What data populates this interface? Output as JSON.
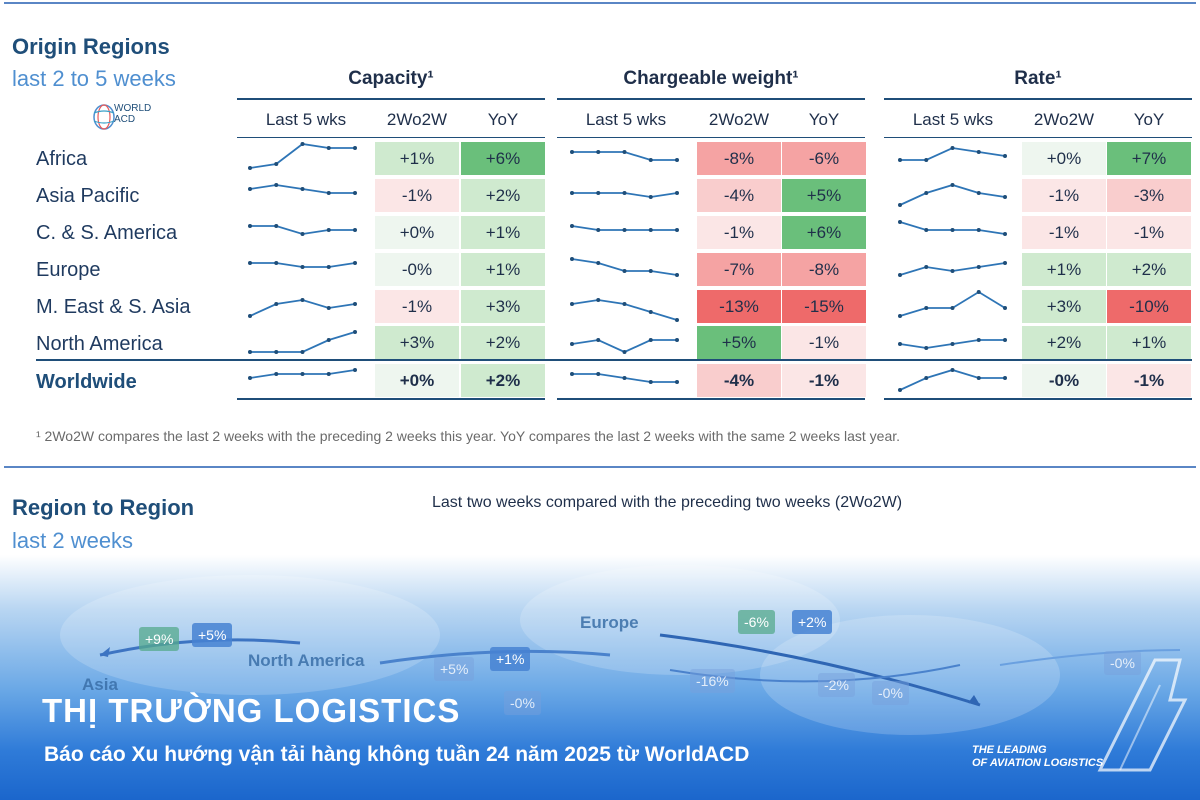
{
  "header": {
    "title": "Origin Regions",
    "subtitle": "last 2 to 5 weeks",
    "logo_line1": "WORLD",
    "logo_line2": "ACD"
  },
  "chart_data": {
    "type": "table",
    "title": "Origin Regions – last 2 to 5 weeks",
    "groups": [
      {
        "key": "capacity",
        "title": "Capacity¹"
      },
      {
        "key": "weight",
        "title": "Chargeable weight¹"
      },
      {
        "key": "rate",
        "title": "Rate¹"
      }
    ],
    "columns": [
      "Last 5 wks",
      "2Wo2W",
      "YoY"
    ],
    "rows": [
      {
        "region": "Africa",
        "capacity": {
          "spark": [
            1,
            2,
            7,
            6,
            6
          ],
          "wow": "+1%",
          "yoy": "+6%"
        },
        "weight": {
          "spark": [
            5,
            5,
            5,
            3,
            3
          ],
          "wow": "-8%",
          "yoy": "-6%"
        },
        "rate": {
          "spark": [
            3,
            3,
            6,
            5,
            4
          ],
          "wow": "+0%",
          "yoy": "+7%"
        }
      },
      {
        "region": "Asia Pacific",
        "capacity": {
          "spark": [
            5,
            6,
            5,
            4,
            4
          ],
          "wow": "-1%",
          "yoy": "+2%"
        },
        "weight": {
          "spark": [
            4,
            4,
            4,
            3,
            4
          ],
          "wow": "-4%",
          "yoy": "+5%"
        },
        "rate": {
          "spark": [
            1,
            4,
            6,
            4,
            3
          ],
          "wow": "-1%",
          "yoy": "-3%"
        }
      },
      {
        "region": "C. & S. America",
        "capacity": {
          "spark": [
            5,
            5,
            3,
            4,
            4
          ],
          "wow": "+0%",
          "yoy": "+1%"
        },
        "weight": {
          "spark": [
            5,
            4,
            4,
            4,
            4
          ],
          "wow": "-1%",
          "yoy": "+6%"
        },
        "rate": {
          "spark": [
            6,
            4,
            4,
            4,
            3
          ],
          "wow": "-1%",
          "yoy": "-1%"
        }
      },
      {
        "region": "Europe",
        "capacity": {
          "spark": [
            5,
            5,
            4,
            4,
            5
          ],
          "wow": "-0%",
          "yoy": "+1%"
        },
        "weight": {
          "spark": [
            6,
            5,
            3,
            3,
            2
          ],
          "wow": "-7%",
          "yoy": "-8%"
        },
        "rate": {
          "spark": [
            2,
            4,
            3,
            4,
            5
          ],
          "wow": "+1%",
          "yoy": "+2%"
        }
      },
      {
        "region": "M. East & S. Asia",
        "capacity": {
          "spark": [
            1,
            4,
            5,
            3,
            4
          ],
          "wow": "-1%",
          "yoy": "+3%"
        },
        "weight": {
          "spark": [
            4,
            5,
            4,
            2,
            0
          ],
          "wow": "-13%",
          "yoy": "-15%"
        },
        "rate": {
          "spark": [
            1,
            3,
            3,
            7,
            3
          ],
          "wow": "+3%",
          "yoy": "-10%"
        }
      },
      {
        "region": "North America",
        "capacity": {
          "spark": [
            1,
            1,
            1,
            4,
            6
          ],
          "wow": "+3%",
          "yoy": "+2%"
        },
        "weight": {
          "spark": [
            3,
            4,
            1,
            4,
            4
          ],
          "wow": "+5%",
          "yoy": "-1%"
        },
        "rate": {
          "spark": [
            3,
            2,
            3,
            4,
            4
          ],
          "wow": "+2%",
          "yoy": "+1%"
        }
      },
      {
        "region": "Worldwide",
        "capacity": {
          "spark": [
            4,
            5,
            5,
            5,
            6
          ],
          "wow": "+0%",
          "yoy": "+2%"
        },
        "weight": {
          "spark": [
            5,
            5,
            4,
            3,
            3
          ],
          "wow": "-4%",
          "yoy": "-1%"
        },
        "rate": {
          "spark": [
            1,
            4,
            6,
            4,
            4
          ],
          "wow": "-0%",
          "yoy": "-1%"
        }
      }
    ]
  },
  "footnote": "¹ 2Wo2W compares the last 2 weeks with the preceding 2 weeks this year. YoY compares the last 2 weeks with the same 2 weeks last year.",
  "region_to_region": {
    "title": "Region to Region",
    "subtitle": "last 2 weeks",
    "caption": "Last two weeks compared with the preceding two weeks (2Wo2W)",
    "map_labels": {
      "europe": "Europe",
      "north_america": "North America",
      "asia": "Asia"
    },
    "tags": [
      "+9%",
      "+5%",
      "+5%",
      "+1%",
      "-6%",
      "+2%",
      "-16%",
      "-2%",
      "-0%",
      "-0%",
      "-0%"
    ]
  },
  "banner": {
    "headline": "THỊ TRƯỜNG LOGISTICS",
    "subline": "Báo cáo Xu hướng vận tải hàng không tuần 24 năm 2025 từ WorldACD",
    "brand_line1": "THE LEADING",
    "brand_line2": "OF AVIATION LOGISTICS"
  },
  "colors": {
    "accent": "#1f4e79",
    "sparkline": "#2e75b6",
    "positive_strong": "#6abf7b",
    "negative_strong": "#f06a6a",
    "banner_blue": "#1b66cc"
  }
}
